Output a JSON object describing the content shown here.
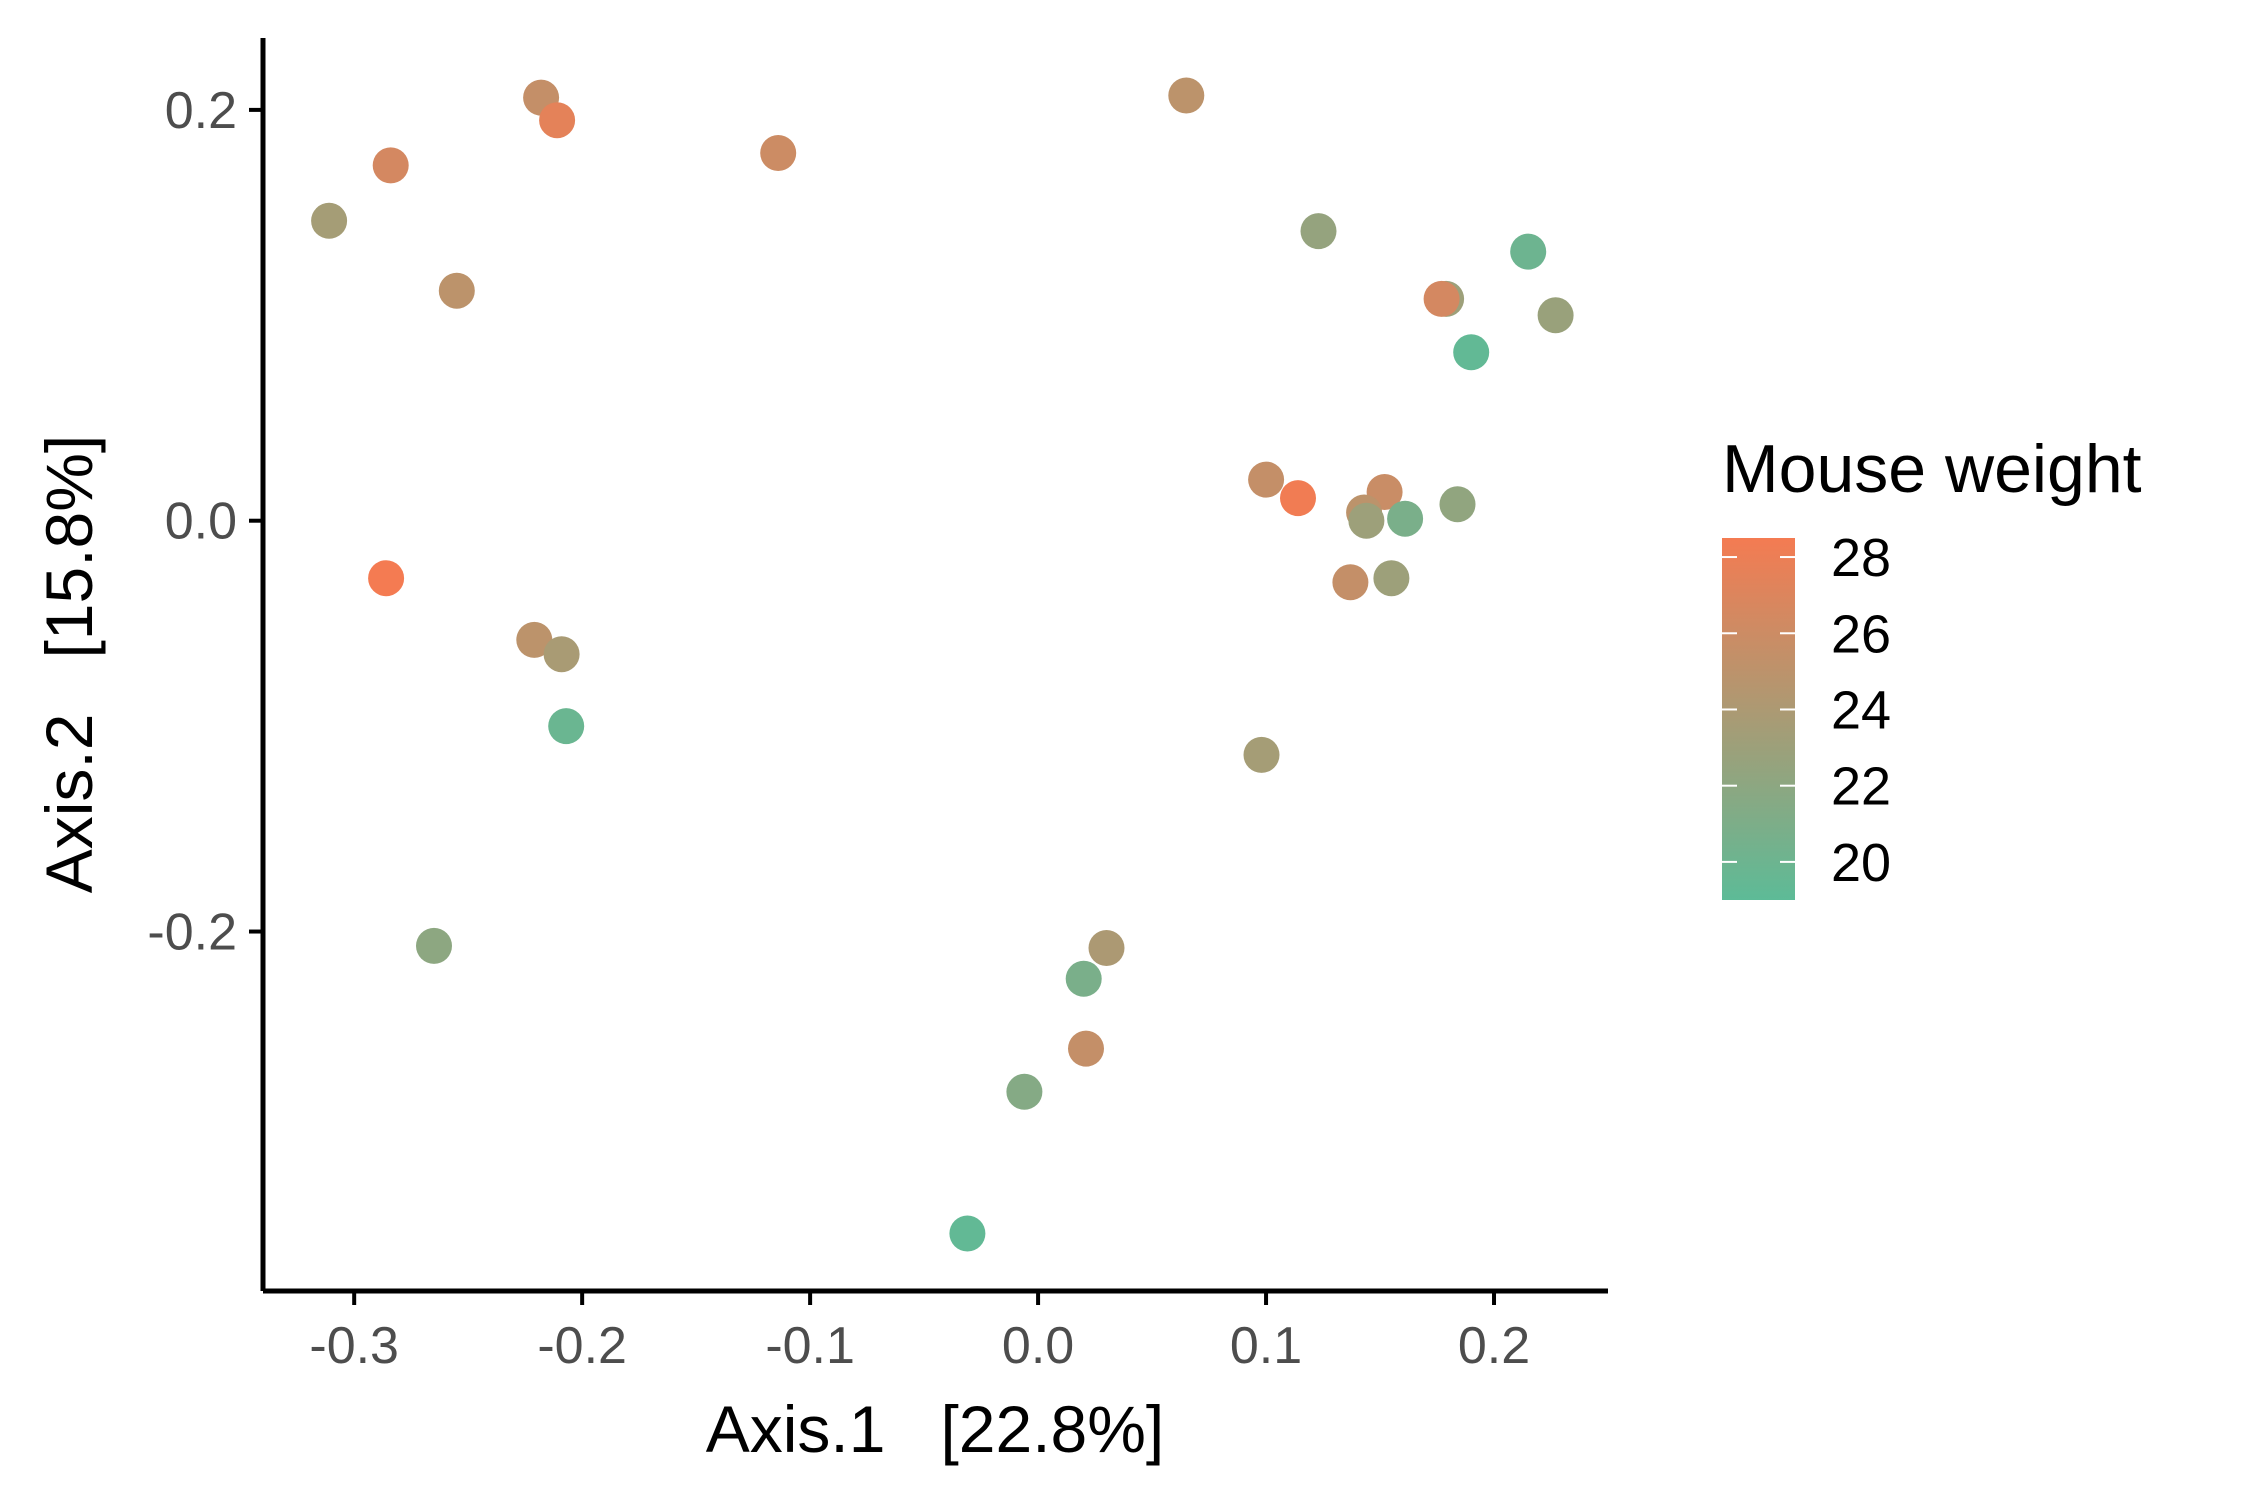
{
  "chart_data": {
    "type": "scatter",
    "xlabel": "Axis.1   [22.8%]",
    "ylabel": "Axis.2   [15.8%]",
    "xlim": [
      -0.34,
      0.25
    ],
    "ylim": [
      -0.375,
      0.235
    ],
    "x_ticks": [
      -0.3,
      -0.2,
      -0.1,
      0.0,
      0.1,
      0.2
    ],
    "x_tick_labels": [
      "-0.3",
      "-0.2",
      "-0.1",
      "0.0",
      "0.1",
      "0.2"
    ],
    "y_ticks": [
      -0.2,
      0.0,
      0.2
    ],
    "y_tick_labels": [
      "-0.2",
      "0.0",
      "0.2"
    ],
    "grid": false,
    "legend": {
      "title": "Mouse weight",
      "placement": "right",
      "type": "colorbar",
      "min": 19.0,
      "max": 28.5,
      "breaks": [
        28,
        26,
        24,
        22,
        20
      ],
      "break_labels": [
        "28",
        "26",
        "24",
        "22",
        "20"
      ],
      "low_color": "#5dbb97",
      "high_color": "#f47b52"
    },
    "points": [
      {
        "x": -0.218,
        "y": 0.206,
        "weight": 25.5
      },
      {
        "x": -0.211,
        "y": 0.195,
        "weight": 27.5
      },
      {
        "x": -0.284,
        "y": 0.173,
        "weight": 26.5
      },
      {
        "x": -0.311,
        "y": 0.146,
        "weight": 23.5
      },
      {
        "x": -0.255,
        "y": 0.112,
        "weight": 25.0
      },
      {
        "x": -0.114,
        "y": 0.179,
        "weight": 26.0
      },
      {
        "x": 0.065,
        "y": 0.207,
        "weight": 25.0
      },
      {
        "x": 0.123,
        "y": 0.141,
        "weight": 22.5
      },
      {
        "x": 0.215,
        "y": 0.131,
        "weight": 20.0
      },
      {
        "x": 0.179,
        "y": 0.108,
        "weight": 23.0
      },
      {
        "x": 0.177,
        "y": 0.108,
        "weight": 26.5
      },
      {
        "x": 0.227,
        "y": 0.1,
        "weight": 22.8
      },
      {
        "x": 0.19,
        "y": 0.082,
        "weight": 19.3
      },
      {
        "x": 0.1,
        "y": 0.02,
        "weight": 25.5
      },
      {
        "x": 0.114,
        "y": 0.011,
        "weight": 28.3
      },
      {
        "x": 0.152,
        "y": 0.014,
        "weight": 25.8
      },
      {
        "x": 0.143,
        "y": 0.004,
        "weight": 25.0
      },
      {
        "x": 0.144,
        "y": 0.0,
        "weight": 23.0
      },
      {
        "x": 0.161,
        "y": 0.001,
        "weight": 20.8
      },
      {
        "x": 0.184,
        "y": 0.008,
        "weight": 22.3
      },
      {
        "x": 0.137,
        "y": -0.03,
        "weight": 25.5
      },
      {
        "x": 0.155,
        "y": -0.028,
        "weight": 23.0
      },
      {
        "x": -0.286,
        "y": -0.028,
        "weight": 28.5
      },
      {
        "x": -0.221,
        "y": -0.058,
        "weight": 25.0
      },
      {
        "x": -0.209,
        "y": -0.065,
        "weight": 23.8
      },
      {
        "x": -0.207,
        "y": -0.1,
        "weight": 19.8
      },
      {
        "x": 0.098,
        "y": -0.114,
        "weight": 23.5
      },
      {
        "x": -0.265,
        "y": -0.207,
        "weight": 22.0
      },
      {
        "x": 0.03,
        "y": -0.208,
        "weight": 24.0
      },
      {
        "x": 0.02,
        "y": -0.223,
        "weight": 20.8
      },
      {
        "x": 0.021,
        "y": -0.257,
        "weight": 25.5
      },
      {
        "x": -0.006,
        "y": -0.278,
        "weight": 21.5
      },
      {
        "x": -0.031,
        "y": -0.347,
        "weight": 19.3
      }
    ]
  }
}
